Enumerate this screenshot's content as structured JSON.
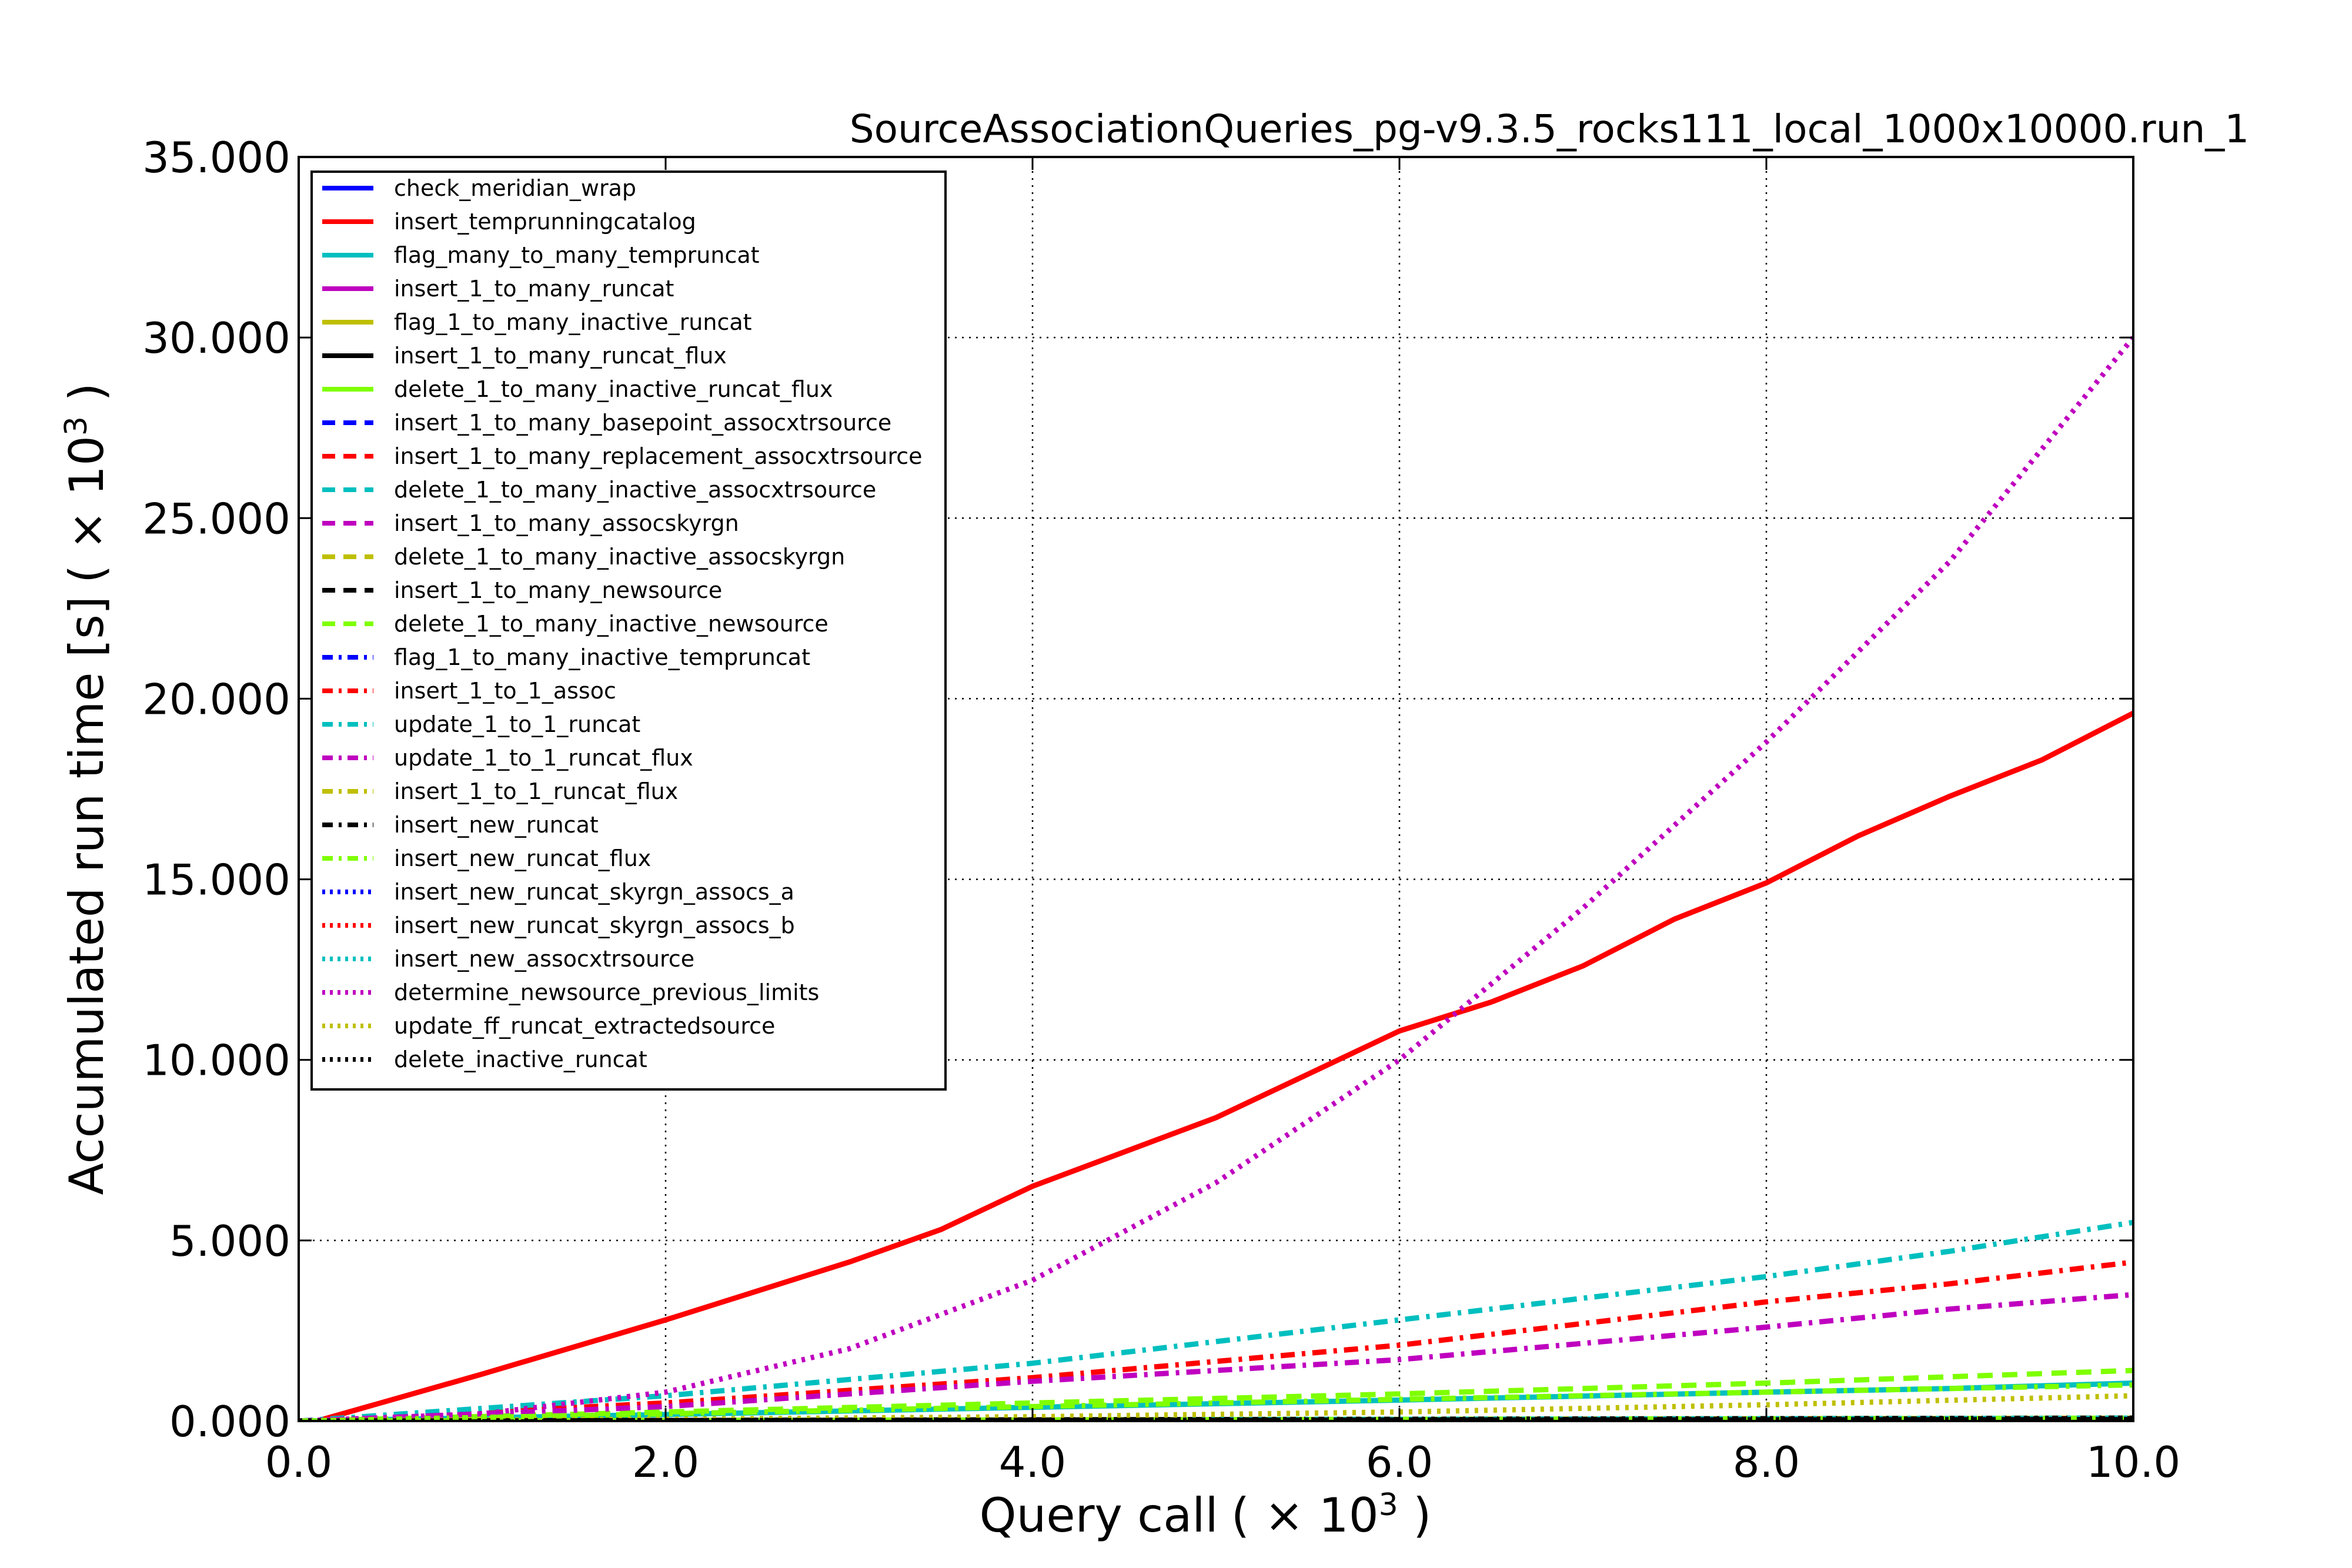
{
  "chart_data": {
    "type": "line",
    "title": "SourceAssociationQueries_pg-v9.3.5_rocks111_local_1000x10000.run_1",
    "xlabel_main": "Query call",
    "xlabel_factor": "( × 10",
    "xlabel_exp": "3",
    "xlabel_close": " )",
    "ylabel_main": "Accumulated run time [s]",
    "ylabel_factor": "( × 10",
    "ylabel_exp": "3",
    "ylabel_close": " )",
    "xlim": [
      0,
      10
    ],
    "ylim": [
      0,
      35
    ],
    "grid": true,
    "legend_position": "top-left",
    "x_ticks": [
      {
        "value": 0,
        "label": "0.0"
      },
      {
        "value": 2,
        "label": "2.0"
      },
      {
        "value": 4,
        "label": "4.0"
      },
      {
        "value": 6,
        "label": "6.0"
      },
      {
        "value": 8,
        "label": "8.0"
      },
      {
        "value": 10,
        "label": "10.0"
      }
    ],
    "y_ticks": [
      {
        "value": 0,
        "label": "0.000"
      },
      {
        "value": 5,
        "label": "5.000"
      },
      {
        "value": 10,
        "label": "10.000"
      },
      {
        "value": 15,
        "label": "15.000"
      },
      {
        "value": 20,
        "label": "20.000"
      },
      {
        "value": 25,
        "label": "25.000"
      },
      {
        "value": 30,
        "label": "30.000"
      },
      {
        "value": 35,
        "label": "35.000"
      }
    ],
    "series": [
      {
        "name": "check_meridian_wrap",
        "color": "#0000ff",
        "style": "solid",
        "x": [
          0,
          2,
          4,
          6,
          8,
          10
        ],
        "y": [
          0,
          0.01,
          0.02,
          0.03,
          0.04,
          0.05
        ]
      },
      {
        "name": "insert_temprunningcatalog",
        "color": "#ff0000",
        "style": "solid",
        "x": [
          0,
          0.1,
          1,
          2,
          3,
          3.5,
          4,
          5,
          5.5,
          6,
          6.5,
          7,
          7.5,
          8,
          8.5,
          9,
          9.5,
          10
        ],
        "y": [
          0,
          0,
          1.3,
          2.8,
          4.4,
          5.3,
          6.5,
          8.4,
          9.6,
          10.8,
          11.6,
          12.6,
          13.9,
          14.9,
          16.2,
          17.3,
          18.3,
          19.6
        ]
      },
      {
        "name": "flag_many_to_many_tempruncat",
        "color": "#00bfbf",
        "style": "solid",
        "x": [
          0,
          2,
          4,
          6,
          8,
          9,
          10
        ],
        "y": [
          0,
          0.18,
          0.38,
          0.58,
          0.8,
          0.9,
          1.05
        ]
      },
      {
        "name": "insert_1_to_many_runcat",
        "color": "#bf00bf",
        "style": "solid",
        "x": [
          0,
          5,
          10
        ],
        "y": [
          0,
          0.02,
          0.04
        ]
      },
      {
        "name": "flag_1_to_many_inactive_runcat",
        "color": "#bfbf00",
        "style": "solid",
        "x": [
          0,
          5,
          10
        ],
        "y": [
          0,
          0.03,
          0.06
        ]
      },
      {
        "name": "insert_1_to_many_runcat_flux",
        "color": "#000000",
        "style": "solid",
        "x": [
          0,
          5,
          10
        ],
        "y": [
          0,
          0.03,
          0.06
        ]
      },
      {
        "name": "delete_1_to_many_inactive_runcat_flux",
        "color": "#7fff00",
        "style": "solid",
        "x": [
          0,
          5,
          10
        ],
        "y": [
          0,
          0.04,
          0.08
        ]
      },
      {
        "name": "insert_1_to_many_basepoint_assocxtrsource",
        "color": "#0000ff",
        "style": "dashed",
        "x": [
          0,
          5,
          10
        ],
        "y": [
          0,
          0.03,
          0.06
        ]
      },
      {
        "name": "insert_1_to_many_replacement_assocxtrsource",
        "color": "#ff0000",
        "style": "dashed",
        "x": [
          0,
          5,
          10
        ],
        "y": [
          0,
          0.03,
          0.07
        ]
      },
      {
        "name": "delete_1_to_many_inactive_assocxtrsource",
        "color": "#00bfbf",
        "style": "dashed",
        "x": [
          0,
          5,
          10
        ],
        "y": [
          0,
          0.03,
          0.06
        ]
      },
      {
        "name": "insert_1_to_many_assocskyrgn",
        "color": "#bf00bf",
        "style": "dashed",
        "x": [
          0,
          5,
          10
        ],
        "y": [
          0,
          0.03,
          0.06
        ]
      },
      {
        "name": "delete_1_to_many_inactive_assocskyrgn",
        "color": "#bfbf00",
        "style": "dashed",
        "x": [
          0,
          5,
          10
        ],
        "y": [
          0,
          0.03,
          0.06
        ]
      },
      {
        "name": "insert_1_to_many_newsource",
        "color": "#000000",
        "style": "dashed",
        "x": [
          0,
          5,
          10
        ],
        "y": [
          0,
          0.03,
          0.06
        ]
      },
      {
        "name": "delete_1_to_many_inactive_newsource",
        "color": "#7fff00",
        "style": "dashed",
        "x": [
          0,
          2,
          4,
          6,
          8,
          10
        ],
        "y": [
          0,
          0.25,
          0.5,
          0.75,
          1.05,
          1.4
        ]
      },
      {
        "name": "flag_1_to_many_inactive_tempruncat",
        "color": "#0000ff",
        "style": "dashdot",
        "x": [
          0,
          5,
          10
        ],
        "y": [
          0,
          0.03,
          0.06
        ]
      },
      {
        "name": "insert_1_to_1_assoc",
        "color": "#ff0000",
        "style": "dashdot",
        "x": [
          0,
          2,
          4,
          6,
          8,
          9,
          10
        ],
        "y": [
          0,
          0.5,
          1.2,
          2.1,
          3.3,
          3.8,
          4.4
        ]
      },
      {
        "name": "update_1_to_1_runcat",
        "color": "#00bfbf",
        "style": "dashdot",
        "x": [
          0,
          2,
          4,
          6,
          8,
          9,
          10
        ],
        "y": [
          0,
          0.7,
          1.6,
          2.8,
          4.0,
          4.7,
          5.5
        ]
      },
      {
        "name": "update_1_to_1_runcat_flux",
        "color": "#bf00bf",
        "style": "dashdot",
        "x": [
          0,
          2,
          4,
          6,
          8,
          9,
          10
        ],
        "y": [
          0,
          0.4,
          1.1,
          1.7,
          2.6,
          3.1,
          3.5
        ]
      },
      {
        "name": "insert_1_to_1_runcat_flux",
        "color": "#bfbf00",
        "style": "dashdot",
        "x": [
          0,
          5,
          10
        ],
        "y": [
          0,
          0.04,
          0.08
        ]
      },
      {
        "name": "insert_new_runcat",
        "color": "#000000",
        "style": "dashdot",
        "x": [
          0,
          5,
          10
        ],
        "y": [
          0,
          0.04,
          0.08
        ]
      },
      {
        "name": "insert_new_runcat_flux",
        "color": "#7fff00",
        "style": "dashdot",
        "x": [
          0,
          2,
          4,
          6,
          8,
          10
        ],
        "y": [
          0,
          0.2,
          0.4,
          0.6,
          0.8,
          1.0
        ]
      },
      {
        "name": "insert_new_runcat_skyrgn_assocs_a",
        "color": "#0000ff",
        "style": "dotted",
        "x": [
          0,
          5,
          10
        ],
        "y": [
          0,
          0.03,
          0.06
        ]
      },
      {
        "name": "insert_new_runcat_skyrgn_assocs_b",
        "color": "#ff0000",
        "style": "dotted",
        "x": [
          0,
          5,
          10
        ],
        "y": [
          0,
          0.03,
          0.06
        ]
      },
      {
        "name": "insert_new_assocxtrsource",
        "color": "#00bfbf",
        "style": "dotted",
        "x": [
          0,
          5,
          10
        ],
        "y": [
          0,
          0.04,
          0.08
        ]
      },
      {
        "name": "determine_newsource_previous_limits",
        "color": "#bf00bf",
        "style": "dotted",
        "x": [
          0,
          1,
          2,
          3,
          4,
          5,
          6,
          7,
          8,
          9,
          10
        ],
        "y": [
          0,
          0.2,
          0.8,
          2.0,
          3.9,
          6.6,
          10.0,
          14.2,
          18.8,
          23.8,
          30.0
        ]
      },
      {
        "name": "update_ff_runcat_extractedsource",
        "color": "#bfbf00",
        "style": "dotted",
        "x": [
          0,
          2,
          4,
          6,
          8,
          10
        ],
        "y": [
          0,
          0.05,
          0.12,
          0.25,
          0.45,
          0.7
        ]
      },
      {
        "name": "delete_inactive_runcat",
        "color": "#000000",
        "style": "dotted",
        "x": [
          0,
          5,
          10
        ],
        "y": [
          0,
          0.02,
          0.04
        ]
      }
    ]
  }
}
